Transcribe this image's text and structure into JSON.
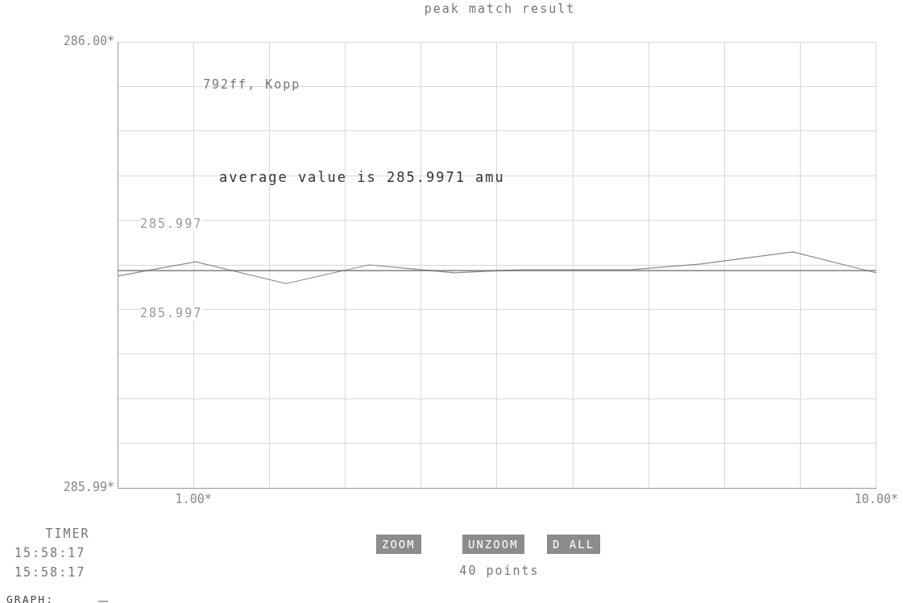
{
  "chart_data": {
    "type": "line",
    "title": "peak match result",
    "x": [
      0,
      1.03,
      2.22,
      3.31,
      4.44,
      5.28,
      6.75,
      7.69,
      8.9,
      10
    ],
    "series": [
      {
        "color": "#8a8a8a",
        "values": [
          285.99475,
          285.99507,
          285.99458,
          285.995,
          285.99482,
          285.99489,
          285.99489,
          285.99502,
          285.99529,
          285.99482
        ]
      }
    ],
    "xlim": [
      0,
      10
    ],
    "xticks": [
      {
        "value": 0,
        "label": null
      },
      {
        "value": 1,
        "label": "1.00*"
      },
      {
        "value": 2,
        "label": null
      },
      {
        "value": 3,
        "label": null
      },
      {
        "value": 4,
        "label": null
      },
      {
        "value": 5,
        "label": null
      },
      {
        "value": 6,
        "label": null
      },
      {
        "value": 7,
        "label": null
      },
      {
        "value": 8,
        "label": null
      },
      {
        "value": 9,
        "label": null
      },
      {
        "value": 10,
        "label": "10.00*"
      }
    ],
    "ylim": [
      285.99,
      286.0
    ],
    "yticks": [
      {
        "value": 285.99,
        "label": "285.99*"
      },
      {
        "value": 285.991,
        "label": null
      },
      {
        "value": 285.992,
        "label": null
      },
      {
        "value": 285.993,
        "label": null
      },
      {
        "value": 285.994,
        "label": null
      },
      {
        "value": 285.995,
        "label": null
      },
      {
        "value": 285.996,
        "label": null
      },
      {
        "value": 285.997,
        "label": null
      },
      {
        "value": 285.998,
        "label": null
      },
      {
        "value": 285.999,
        "label": null
      },
      {
        "value": 286.0,
        "label": "286.00*"
      }
    ],
    "ref_lines": [
      {
        "axis": "y",
        "value": 285.99487,
        "color": "#666666"
      }
    ],
    "grid": true,
    "marker": "none",
    "legend": false,
    "annotations": [
      "792ff, Kopp",
      "average value is 285.9971 amu",
      "285.997",
      "285.997",
      "TIMER",
      "15:58:17",
      "15:58:17",
      "ZOOM",
      "UNZOOM",
      "D ALL",
      "40 points",
      "GRAPH:"
    ]
  }
}
